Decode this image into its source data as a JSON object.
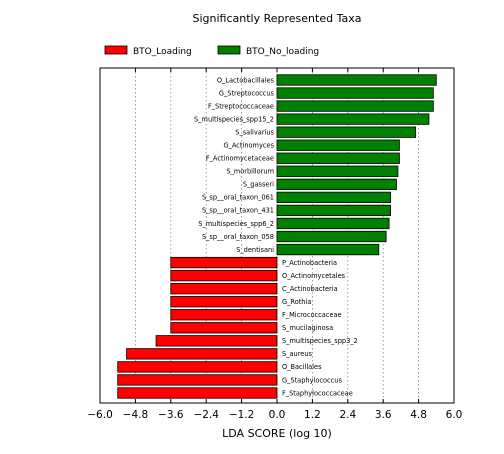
{
  "chart_data": {
    "type": "bar",
    "orientation": "horizontal",
    "title": "Significantly Represented Taxa",
    "xlabel": "LDA SCORE (log 10)",
    "ylabel": "",
    "xlim": [
      -6.0,
      6.0
    ],
    "xticks": [
      -6.0,
      -4.8,
      -3.6,
      -2.4,
      -1.2,
      0.0,
      1.2,
      2.4,
      3.6,
      4.8,
      6.0
    ],
    "xtick_labels": [
      "−6.0",
      "−4.8",
      "−3.6",
      "−2.4",
      "−1.2",
      "0.0",
      "1.2",
      "2.4",
      "3.6",
      "4.8",
      "6.0"
    ],
    "grid": "vertical dotted",
    "legend_position": "top-left",
    "series": [
      {
        "name": "BTO_Loading",
        "color": "#ff0000",
        "categories": [
          "P_Actinobacteria",
          "O_Actinomycetales",
          "C_Actinobacteria",
          "G_Rothia",
          "F_Micrococcaceae",
          "S_mucilaginosa",
          "S_multispecies_spp3_2",
          "S_aureus",
          "O_Bacillales",
          "G_Staphylococcus",
          "F_Staphylococcaceae"
        ],
        "values": [
          -3.6,
          -3.6,
          -3.6,
          -3.6,
          -3.6,
          -3.6,
          -4.1,
          -5.1,
          -5.4,
          -5.4,
          -5.4
        ]
      },
      {
        "name": "BTO_No_loading",
        "color": "#008000",
        "categories": [
          "O_Lactobacillales",
          "G_Streptococcus",
          "F_Streptococcaceae",
          "S_multispecies_spp15_2",
          "S_salivarius",
          "G_Actinomyces",
          "F_Actinomycetaceae",
          "S_morbillorum",
          "S_gasseri",
          "S_sp__oral_taxon_061",
          "S_sp__oral_taxon_431",
          "S_multispecies_spp6_2",
          "S_sp__oral_taxon_058",
          "S_dentisani"
        ],
        "values": [
          5.4,
          5.3,
          5.3,
          5.15,
          4.7,
          4.15,
          4.15,
          4.1,
          4.05,
          3.85,
          3.85,
          3.8,
          3.7,
          3.45
        ]
      }
    ],
    "bar_order": [
      "O_Lactobacillales",
      "G_Streptococcus",
      "F_Streptococcaceae",
      "S_multispecies_spp15_2",
      "S_salivarius",
      "G_Actinomyces",
      "F_Actinomycetaceae",
      "S_morbillorum",
      "S_gasseri",
      "S_sp__oral_taxon_061",
      "S_sp__oral_taxon_431",
      "S_multispecies_spp6_2",
      "S_sp__oral_taxon_058",
      "S_dentisani",
      "P_Actinobacteria",
      "O_Actinomycetales",
      "C_Actinobacteria",
      "G_Rothia",
      "F_Micrococcaceae",
      "S_mucilaginosa",
      "S_multispecies_spp3_2",
      "S_aureus",
      "O_Bacillales",
      "G_Staphylococcus",
      "F_Staphylococcaceae"
    ]
  }
}
